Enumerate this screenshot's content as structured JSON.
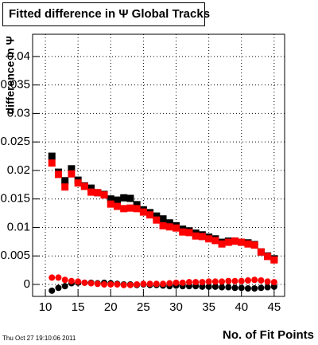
{
  "chart_data": {
    "type": "scatter",
    "title": "Fitted difference in Ψ  Global Tracks",
    "x_label": "No. of Fit Points",
    "y_label": "difference in Ψ",
    "timestamp": "Thu Oct 27 19:10:06 2011",
    "x": [
      11,
      12,
      13,
      14,
      15,
      16,
      17,
      18,
      19,
      20,
      21,
      22,
      23,
      24,
      25,
      26,
      27,
      28,
      29,
      30,
      31,
      32,
      33,
      34,
      35,
      36,
      37,
      38,
      39,
      40,
      41,
      42,
      43,
      44,
      45
    ],
    "series": [
      {
        "color": "#000000",
        "marker": "square",
        "values": [
          0.0225,
          0.0197,
          0.0182,
          0.0203,
          0.0183,
          0.0173,
          0.0169,
          0.0161,
          0.0158,
          0.015,
          0.0148,
          0.0152,
          0.0151,
          0.014,
          0.0131,
          0.0126,
          0.012,
          0.0115,
          0.0108,
          0.0103,
          0.0097,
          0.0094,
          0.009,
          0.0087,
          0.0083,
          0.008,
          0.0074,
          0.0076,
          0.0076,
          0.0074,
          0.0073,
          0.007,
          0.0057,
          0.005,
          0.0045
        ]
      },
      {
        "color": "#ff0000",
        "marker": "square",
        "values": [
          0.0213,
          0.0193,
          0.0171,
          0.0194,
          0.0178,
          0.0172,
          0.0162,
          0.0161,
          0.0157,
          0.0141,
          0.0137,
          0.0133,
          0.0134,
          0.0133,
          0.0127,
          0.0122,
          0.0113,
          0.0103,
          0.0101,
          0.0099,
          0.0092,
          0.0091,
          0.0085,
          0.0084,
          0.008,
          0.0077,
          0.0071,
          0.0074,
          0.0076,
          0.0074,
          0.0071,
          0.0069,
          0.0057,
          0.0049,
          0.0043
        ]
      },
      {
        "color": "#000000",
        "marker": "circle",
        "values": [
          -0.0011,
          -0.0006,
          -0.0003,
          0.0002,
          0.0003,
          0.0003,
          0.0003,
          0.0002,
          0.0003,
          0.0002,
          0.0001,
          0,
          0,
          -0.0001,
          0,
          -0.0001,
          -0.0001,
          -0.0002,
          -0.0003,
          -0.0002,
          -0.0003,
          -0.0003,
          -0.0003,
          -0.0004,
          -0.0004,
          -0.0004,
          -0.0005,
          -0.0005,
          -0.0006,
          -0.0006,
          -0.0007,
          -0.0007,
          -0.0006,
          -0.0005,
          -0.0004
        ]
      },
      {
        "color": "#ff0000",
        "marker": "circle",
        "values": [
          0.0012,
          0.0012,
          0.0008,
          0.0006,
          0.0005,
          0.0003,
          0.0002,
          0.0001,
          0,
          0,
          0,
          -0.0001,
          -0.0001,
          0,
          0.0001,
          0.0001,
          0.0001,
          0.0001,
          0.0002,
          0.0003,
          0.0003,
          0.0004,
          0.0004,
          0.0004,
          0.0005,
          0.0005,
          0.0005,
          0.0006,
          0.0006,
          0.0006,
          0.0007,
          0.0008,
          0.0007,
          0.0005,
          0.0004
        ]
      }
    ],
    "xlim": [
      8.05,
      46.6
    ],
    "ylim": [
      -0.0021,
      0.0439
    ],
    "xticks": [
      10,
      15,
      20,
      25,
      30,
      35,
      40,
      45
    ],
    "yticks": [
      0,
      0.005,
      0.01,
      0.015,
      0.02,
      0.025,
      0.03,
      0.035,
      0.04
    ],
    "grid": true
  }
}
